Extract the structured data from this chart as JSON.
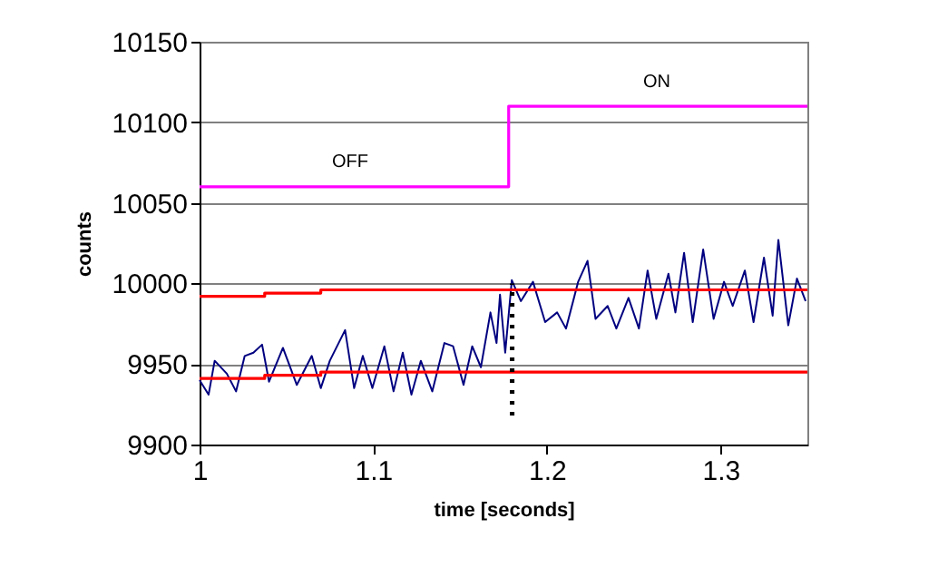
{
  "chart_data": {
    "type": "line",
    "xlabel": "time [seconds]",
    "ylabel": "counts",
    "xlim": [
      1,
      1.35
    ],
    "xticks": [
      1,
      1.1,
      1.2,
      1.3
    ],
    "ylim": [
      9900,
      10150
    ],
    "yticks": [
      9900,
      9950,
      10000,
      10050,
      10100,
      10150
    ],
    "grid": "y",
    "annotations": [
      "OFF",
      "ON"
    ],
    "series": [
      {
        "color": "#000080",
        "x": [
          1.0,
          1.0052,
          1.0087,
          1.0157,
          1.021,
          1.026,
          1.031,
          1.036,
          1.04,
          1.048,
          1.056,
          1.0646,
          1.0698,
          1.075,
          1.0838,
          1.089,
          1.094,
          1.0995,
          1.1064,
          1.1117,
          1.117,
          1.122,
          1.1274,
          1.134,
          1.141,
          1.146,
          1.152,
          1.157,
          1.162,
          1.1675,
          1.171,
          1.173,
          1.176,
          1.1798,
          1.185,
          1.192,
          1.199,
          1.2059,
          1.211,
          1.218,
          1.2234,
          1.228,
          1.235,
          1.24,
          1.247,
          1.253,
          1.258,
          1.263,
          1.27,
          1.274,
          1.279,
          1.284,
          1.29,
          1.296,
          1.302,
          1.307,
          1.314,
          1.319,
          1.325,
          1.33,
          1.3333,
          1.339,
          1.344,
          1.349
        ],
        "values": [
          9940,
          9931,
          9952,
          9944,
          9933,
          9955,
          9957,
          9962,
          9939,
          9960,
          9937,
          9955,
          9935,
          9952,
          9971,
          9935,
          9955,
          9935,
          9961,
          9933,
          9957,
          9931,
          9952,
          9933,
          9963,
          9961,
          9937,
          9961,
          9948,
          9982,
          9963,
          9993,
          9957,
          10002,
          9989,
          10001,
          9976,
          9982,
          9972,
          10001,
          10014,
          9978,
          9986,
          9972,
          9991,
          9972,
          10008,
          9978,
          10006,
          9982,
          10019,
          9976,
          10021,
          9978,
          10001,
          9986,
          10008,
          9976,
          10016,
          9980,
          10027,
          9974,
          10003,
          9989
        ]
      },
      {
        "type": "step",
        "color": "#ff00ff",
        "x": [
          1,
          1.178,
          1.35
        ],
        "values": [
          10060,
          10110,
          10110
        ]
      },
      {
        "type": "step",
        "color": "#ff0000",
        "x": [
          1,
          1.0375,
          1.0698,
          1.35
        ],
        "values": [
          9992,
          9994,
          9996,
          9996
        ]
      },
      {
        "type": "step",
        "color": "#ff0000",
        "x": [
          1,
          1.0375,
          1.0698,
          1.35
        ],
        "values": [
          9941,
          9943,
          9945,
          9945
        ]
      },
      {
        "color": "#000000",
        "line_style": "dotted",
        "x": [
          1.18,
          1.18
        ],
        "values": [
          9918,
          10000
        ]
      }
    ]
  }
}
